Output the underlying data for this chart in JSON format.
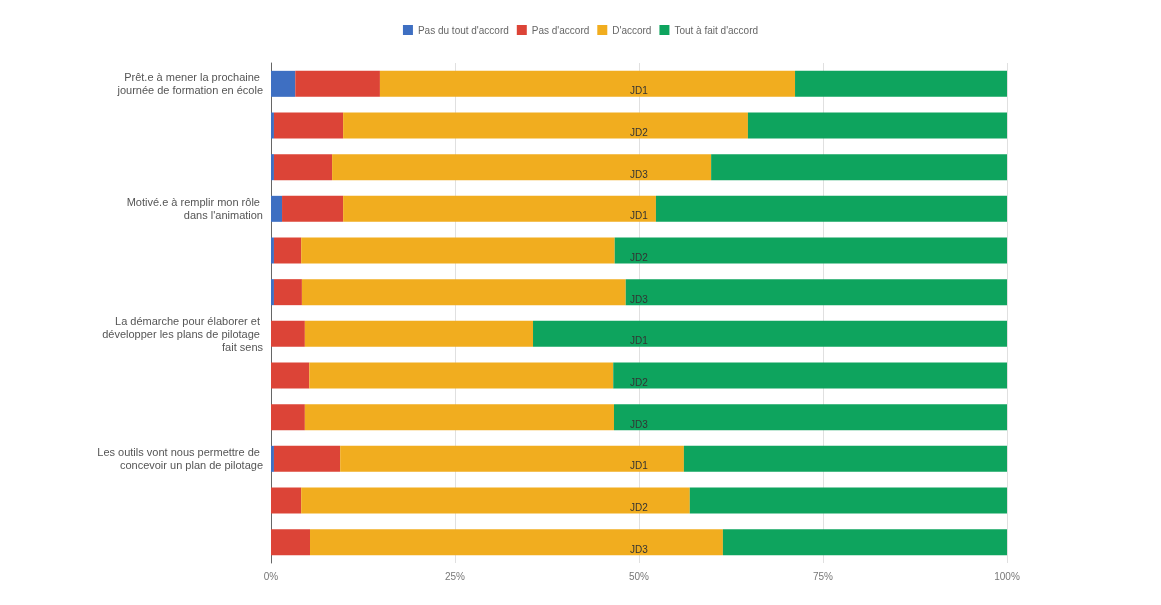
{
  "chart_data": {
    "type": "bar",
    "orientation": "horizontal",
    "stacked": true,
    "categories": [
      "Prêt.e à mener la prochaine journée de formation en école",
      null,
      null,
      "Motivé.e à remplir mon rôle dans l'animation",
      null,
      null,
      "La démarche pour élaborer et développer les plans de pilotage fait sens",
      null,
      null,
      "Les outils vont nous permettre de concevoir un plan de pilotage",
      null,
      null
    ],
    "series": [
      {
        "name": "Pas du tout d'accord",
        "color": "#3e6fc2",
        "values": [
          3.3,
          0.4,
          0.4,
          1.5,
          0.4,
          0.4,
          0,
          0,
          0,
          0.4,
          0,
          0
        ]
      },
      {
        "name": "Pas d'accord",
        "color": "#dc4437",
        "values": [
          11.5,
          9.4,
          7.9,
          8.3,
          3.7,
          3.8,
          4.6,
          5.2,
          4.6,
          9.0,
          4.1,
          5.3
        ]
      },
      {
        "name": "D'accord",
        "color": "#f1ad1f",
        "values": [
          56.4,
          55.0,
          51.5,
          42.5,
          42.6,
          44.0,
          31.0,
          41.3,
          42.0,
          46.7,
          52.8,
          56.1
        ]
      },
      {
        "name": "Tout à fait d'accord",
        "color": "#0ea45e",
        "values": [
          28.8,
          35.2,
          40.2,
          47.7,
          53.3,
          51.8,
          64.4,
          53.5,
          53.4,
          43.9,
          43.1,
          38.6
        ]
      }
    ],
    "xlim": [
      0,
      100
    ],
    "xticks": [
      {
        "value": 0,
        "label": "0%"
      },
      {
        "value": 25,
        "label": "25%"
      },
      {
        "value": 50,
        "label": "50%"
      },
      {
        "value": 75,
        "label": "75%"
      },
      {
        "value": 100,
        "label": "100%"
      }
    ],
    "grid": "x",
    "legend": "top",
    "annotations": [
      "JD1",
      "JD2",
      "JD3",
      "JD1",
      "JD2",
      "JD3",
      "JD1",
      "JD2",
      "JD3",
      "JD1",
      "JD2",
      "JD3"
    ]
  }
}
